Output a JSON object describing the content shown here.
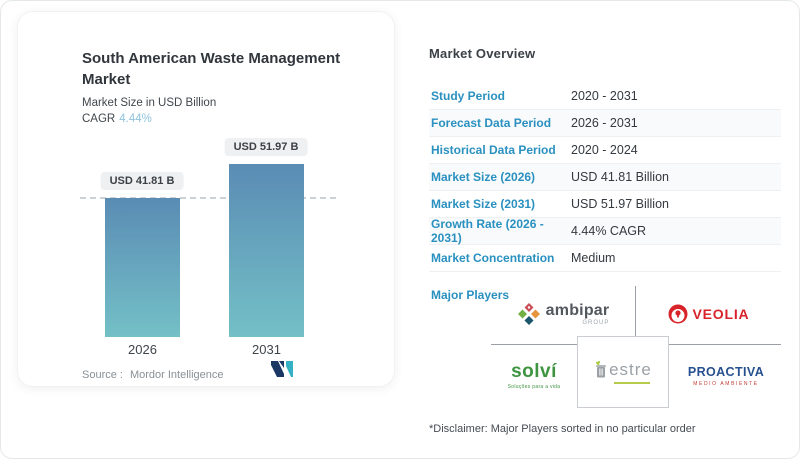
{
  "left_card": {
    "title": "South American Waste Management Market",
    "subtitle": "Market Size in USD Billion",
    "cagr_label": "CAGR",
    "cagr_value": "4.44%",
    "source_label": "Source :",
    "source_value": "Mordor Intelligence"
  },
  "chart_data": {
    "type": "bar",
    "title": "South American Waste Management Market",
    "ylabel": "Market Size in USD Billion",
    "categories": [
      "2026",
      "2031"
    ],
    "values": [
      41.81,
      51.97
    ],
    "value_labels": [
      "USD 41.81 B",
      "USD 51.97 B"
    ],
    "cagr": "4.44%",
    "reference_line_value": 41.81,
    "grid": false,
    "legend": "none",
    "bar_gradient_top": "#5a8cb4",
    "bar_gradient_bottom": "#74c0c7"
  },
  "overview": {
    "title": "Market Overview",
    "rows": [
      {
        "label": "Study Period",
        "value": "2020 - 2031"
      },
      {
        "label": "Forecast Data Period",
        "value": "2026 - 2031"
      },
      {
        "label": "Historical Data Period",
        "value": "2020 - 2024"
      },
      {
        "label": "Market Size (2026)",
        "value": "USD 41.81 Billion"
      },
      {
        "label": "Market Size (2031)",
        "value": "USD 51.97 Billion"
      },
      {
        "label": "Growth Rate (2026 - 2031)",
        "value": "4.44% CAGR"
      },
      {
        "label": "Market Concentration",
        "value": "Medium"
      }
    ],
    "major_players_label": "Major Players",
    "disclaimer": "*Disclaimer: Major Players sorted in no particular order"
  },
  "players": {
    "ambipar": {
      "name": "ambipar",
      "sub": "GROUP"
    },
    "veolia": {
      "name": "VEOLIA"
    },
    "solvi": {
      "name": "solví",
      "tagline": "Soluções para a vida"
    },
    "estre": {
      "name": "estre"
    },
    "proactiva": {
      "name": "PROACTIVA",
      "tagline": "MEDIO AMBIENTE"
    }
  },
  "colors": {
    "label_blue": "#2990c0",
    "cagr_light_blue": "#8fc3de",
    "bar_top": "#5a8cb4",
    "bar_bottom": "#74c0c7",
    "veolia_red": "#d8232a",
    "solvi_green": "#3e9440",
    "proactiva_blue": "#26508f"
  }
}
